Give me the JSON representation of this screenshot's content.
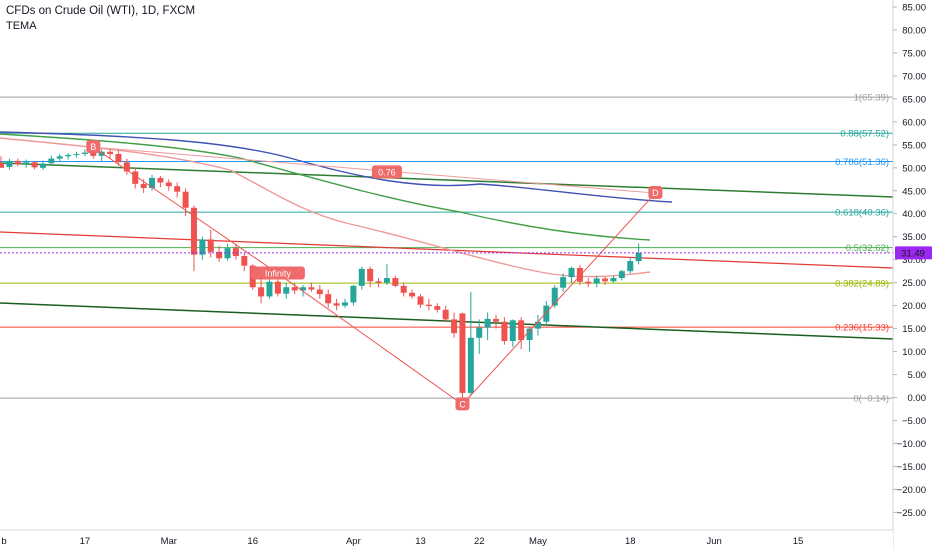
{
  "header": {
    "title": "CFDs on Crude Oil (WTI), 1D, FXCM",
    "indicator": "TEMA"
  },
  "colors": {
    "bull": "#26a69a",
    "bear": "#ef5350",
    "price_tag": "#9c27f0"
  },
  "chart_data": {
    "type": "candlestick",
    "title": "CFDs on Crude Oil (WTI), 1D, FXCM",
    "ylim": [
      -28,
      87
    ],
    "y_ticks": [
      "85.00",
      "80.00",
      "75.00",
      "70.00",
      "65.00",
      "60.00",
      "55.00",
      "50.00",
      "45.00",
      "40.00",
      "35.00",
      "30.00",
      "25.00",
      "20.00",
      "15.00",
      "10.00",
      "5.00",
      "0.00",
      "−5.00",
      "−10.00",
      "−15.00",
      "−20.00",
      "−25.00"
    ],
    "y_tick_values": [
      85,
      80,
      75,
      70,
      65,
      60,
      55,
      50,
      45,
      40,
      35,
      30,
      25,
      20,
      15,
      10,
      5,
      0,
      -5,
      -10,
      -15,
      -20,
      -25
    ],
    "x_ticks": [
      {
        "label": "b",
        "idx": 0
      },
      {
        "label": "17",
        "idx": 10
      },
      {
        "label": "Mar",
        "idx": 20
      },
      {
        "label": "16",
        "idx": 30
      },
      {
        "label": "Apr",
        "idx": 42
      },
      {
        "label": "13",
        "idx": 50
      },
      {
        "label": "22",
        "idx": 57
      },
      {
        "label": "May",
        "idx": 64
      },
      {
        "label": "18",
        "idx": 75
      },
      {
        "label": "Jun",
        "idx": 85
      },
      {
        "label": "15",
        "idx": 95
      }
    ],
    "last_price": "31.49",
    "last_price_value": 31.49,
    "candles": [
      {
        "o": 51.0,
        "h": 52.5,
        "l": 50.0,
        "c": 50.0
      },
      {
        "o": 50.2,
        "h": 52.0,
        "l": 49.6,
        "c": 51.5
      },
      {
        "o": 51.5,
        "h": 52.0,
        "l": 50.3,
        "c": 50.8
      },
      {
        "o": 50.8,
        "h": 51.8,
        "l": 50.0,
        "c": 51.2
      },
      {
        "o": 51.2,
        "h": 51.5,
        "l": 49.7,
        "c": 50.1
      },
      {
        "o": 50.0,
        "h": 51.6,
        "l": 49.5,
        "c": 50.9
      },
      {
        "o": 51.0,
        "h": 52.6,
        "l": 50.5,
        "c": 52.0
      },
      {
        "o": 52.0,
        "h": 53.0,
        "l": 51.5,
        "c": 52.5
      },
      {
        "o": 52.5,
        "h": 53.2,
        "l": 51.8,
        "c": 52.8
      },
      {
        "o": 52.8,
        "h": 53.5,
        "l": 52.2,
        "c": 53.0
      },
      {
        "o": 53.0,
        "h": 54.0,
        "l": 52.5,
        "c": 53.3
      },
      {
        "o": 53.3,
        "h": 54.5,
        "l": 52.0,
        "c": 52.6
      },
      {
        "o": 52.6,
        "h": 54.0,
        "l": 51.5,
        "c": 53.5
      },
      {
        "o": 53.5,
        "h": 54.2,
        "l": 52.0,
        "c": 53.0
      },
      {
        "o": 53.0,
        "h": 53.8,
        "l": 50.5,
        "c": 51.2
      },
      {
        "o": 51.2,
        "h": 52.0,
        "l": 48.5,
        "c": 49.2
      },
      {
        "o": 49.2,
        "h": 50.0,
        "l": 45.5,
        "c": 46.5
      },
      {
        "o": 46.5,
        "h": 47.5,
        "l": 44.5,
        "c": 45.6
      },
      {
        "o": 45.6,
        "h": 48.5,
        "l": 45.0,
        "c": 47.8
      },
      {
        "o": 47.8,
        "h": 48.2,
        "l": 45.8,
        "c": 46.8
      },
      {
        "o": 46.8,
        "h": 47.5,
        "l": 45.0,
        "c": 46.0
      },
      {
        "o": 46.0,
        "h": 46.8,
        "l": 43.5,
        "c": 44.8
      },
      {
        "o": 44.8,
        "h": 45.5,
        "l": 39.5,
        "c": 41.3
      },
      {
        "o": 41.3,
        "h": 41.8,
        "l": 27.5,
        "c": 31.1
      },
      {
        "o": 31.1,
        "h": 35.0,
        "l": 30.0,
        "c": 34.4
      },
      {
        "o": 34.4,
        "h": 36.5,
        "l": 30.5,
        "c": 31.7
      },
      {
        "o": 31.7,
        "h": 33.0,
        "l": 29.5,
        "c": 30.3
      },
      {
        "o": 30.3,
        "h": 33.5,
        "l": 29.8,
        "c": 32.5
      },
      {
        "o": 32.5,
        "h": 33.5,
        "l": 30.0,
        "c": 30.8
      },
      {
        "o": 30.8,
        "h": 31.5,
        "l": 27.5,
        "c": 28.7
      },
      {
        "o": 28.7,
        "h": 29.0,
        "l": 23.5,
        "c": 24.0
      },
      {
        "o": 24.0,
        "h": 26.0,
        "l": 20.5,
        "c": 22.0
      },
      {
        "o": 22.0,
        "h": 27.0,
        "l": 21.5,
        "c": 25.2
      },
      {
        "o": 25.2,
        "h": 26.5,
        "l": 22.0,
        "c": 22.6
      },
      {
        "o": 22.6,
        "h": 25.0,
        "l": 21.5,
        "c": 24.0
      },
      {
        "o": 24.0,
        "h": 25.0,
        "l": 22.5,
        "c": 23.3
      },
      {
        "o": 23.3,
        "h": 24.5,
        "l": 22.0,
        "c": 24.0
      },
      {
        "o": 24.0,
        "h": 25.0,
        "l": 23.0,
        "c": 23.5
      },
      {
        "o": 23.5,
        "h": 24.5,
        "l": 21.5,
        "c": 22.5
      },
      {
        "o": 22.5,
        "h": 23.5,
        "l": 19.5,
        "c": 20.5
      },
      {
        "o": 20.5,
        "h": 21.5,
        "l": 19.0,
        "c": 20.0
      },
      {
        "o": 20.0,
        "h": 21.5,
        "l": 19.5,
        "c": 20.7
      },
      {
        "o": 20.7,
        "h": 24.5,
        "l": 20.0,
        "c": 24.3
      },
      {
        "o": 24.3,
        "h": 28.5,
        "l": 23.5,
        "c": 28.0
      },
      {
        "o": 28.0,
        "h": 28.5,
        "l": 24.0,
        "c": 25.3
      },
      {
        "o": 25.3,
        "h": 26.0,
        "l": 24.0,
        "c": 25.0
      },
      {
        "o": 25.0,
        "h": 29.0,
        "l": 24.5,
        "c": 26.0
      },
      {
        "o": 26.0,
        "h": 26.5,
        "l": 24.0,
        "c": 24.3
      },
      {
        "o": 24.3,
        "h": 25.0,
        "l": 22.0,
        "c": 22.8
      },
      {
        "o": 22.8,
        "h": 23.5,
        "l": 21.5,
        "c": 22.0
      },
      {
        "o": 22.0,
        "h": 22.5,
        "l": 19.5,
        "c": 20.2
      },
      {
        "o": 20.2,
        "h": 21.5,
        "l": 19.0,
        "c": 19.9
      },
      {
        "o": 19.9,
        "h": 20.5,
        "l": 18.5,
        "c": 19.1
      },
      {
        "o": 19.1,
        "h": 20.0,
        "l": 16.5,
        "c": 17.0
      },
      {
        "o": 17.0,
        "h": 18.5,
        "l": 13.0,
        "c": 14.0
      },
      {
        "o": 18.3,
        "h": 18.5,
        "l": 0.0,
        "c": 1.0
      },
      {
        "o": 1.0,
        "h": 23.0,
        "l": 0.5,
        "c": 13.0
      },
      {
        "o": 13.0,
        "h": 17.0,
        "l": 9.5,
        "c": 15.2
      },
      {
        "o": 15.2,
        "h": 18.5,
        "l": 12.5,
        "c": 17.1
      },
      {
        "o": 17.1,
        "h": 18.0,
        "l": 15.0,
        "c": 16.5
      },
      {
        "o": 16.5,
        "h": 17.5,
        "l": 11.5,
        "c": 12.3
      },
      {
        "o": 12.3,
        "h": 17.0,
        "l": 11.0,
        "c": 16.8
      },
      {
        "o": 16.8,
        "h": 17.5,
        "l": 10.5,
        "c": 12.5
      },
      {
        "o": 12.5,
        "h": 15.5,
        "l": 10.0,
        "c": 15.0
      },
      {
        "o": 15.0,
        "h": 18.0,
        "l": 13.5,
        "c": 16.5
      },
      {
        "o": 16.5,
        "h": 21.0,
        "l": 16.0,
        "c": 20.0
      },
      {
        "o": 20.0,
        "h": 24.5,
        "l": 19.5,
        "c": 23.9
      },
      {
        "o": 23.9,
        "h": 27.0,
        "l": 23.0,
        "c": 26.2
      },
      {
        "o": 26.2,
        "h": 28.5,
        "l": 25.0,
        "c": 28.2
      },
      {
        "o": 28.2,
        "h": 28.8,
        "l": 24.5,
        "c": 25.2
      },
      {
        "o": 25.2,
        "h": 26.0,
        "l": 24.0,
        "c": 24.8
      },
      {
        "o": 24.8,
        "h": 26.5,
        "l": 24.0,
        "c": 25.9
      },
      {
        "o": 25.9,
        "h": 26.3,
        "l": 24.5,
        "c": 25.3
      },
      {
        "o": 25.3,
        "h": 26.5,
        "l": 25.0,
        "c": 26.0
      },
      {
        "o": 26.0,
        "h": 27.8,
        "l": 25.5,
        "c": 27.5
      },
      {
        "o": 27.5,
        "h": 30.5,
        "l": 27.0,
        "c": 29.7
      },
      {
        "o": 29.7,
        "h": 33.5,
        "l": 29.0,
        "c": 31.5
      }
    ],
    "fib_levels": [
      {
        "label": "1(65.39)",
        "value": 65.39,
        "color": "#9e9e9e"
      },
      {
        "label": "0.88(57.52)",
        "value": 57.52,
        "color": "#26a69a"
      },
      {
        "label": "0.786(51.36)",
        "value": 51.36,
        "color": "#2196f3"
      },
      {
        "label": "0.618(40.36)",
        "value": 40.36,
        "color": "#26a69a"
      },
      {
        "label": "0.5(32.62)",
        "value": 32.62,
        "color": "#4caf50"
      },
      {
        "label": "0.382(24.89)",
        "value": 24.89,
        "color": "#9ab700"
      },
      {
        "label": "0.236(15.33)",
        "value": 15.33,
        "color": "#f44336"
      },
      {
        "label": "0(−0.14)",
        "value": -0.14,
        "color": "#9e9e9e"
      }
    ],
    "points": [
      {
        "label": "B",
        "idx": 11,
        "value": 54.5
      },
      {
        "label": "0.76",
        "idx": 46,
        "value": 49.0
      },
      {
        "label": "D",
        "idx": 78,
        "value": 44.5
      },
      {
        "label": "Infinity",
        "idx": 33,
        "value": 27.0
      },
      {
        "label": "C",
        "idx": 55,
        "value": -1.5
      }
    ]
  }
}
